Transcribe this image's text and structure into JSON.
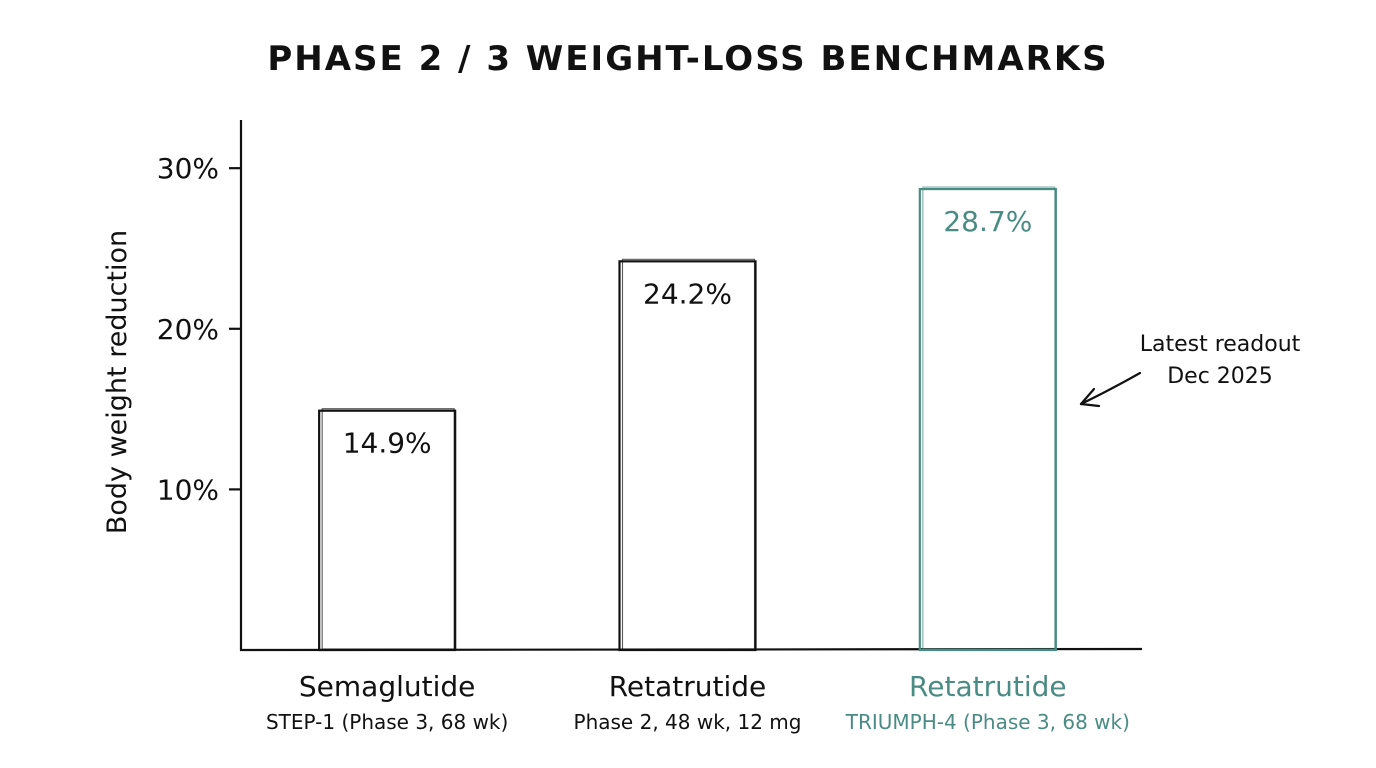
{
  "chart_data": {
    "type": "bar",
    "title": "PHASE 2 / 3 WEIGHT-LOSS BENCHMARKS",
    "ylabel": "Body weight reduction",
    "xlabel": "",
    "ylim": [
      0,
      33
    ],
    "yticks": [
      10,
      20,
      30
    ],
    "ytick_labels": [
      "10%",
      "20%",
      "30%"
    ],
    "grid": false,
    "categories": [
      "Semaglutide",
      "Retatrutide",
      "Retatrutide"
    ],
    "subtitles": [
      "STEP-1 (Phase 3, 68 wk)",
      "Phase 2, 48 wk, 12 mg",
      "TRIUMPH-4 (Phase 3, 68 wk)"
    ],
    "values": [
      14.9,
      24.2,
      28.7
    ],
    "value_labels": [
      "14.9%",
      "24.2%",
      "28.7%"
    ],
    "highlight_index": 2,
    "colors": {
      "default": "#111111",
      "highlight": "#4a8c84"
    },
    "annotation": {
      "lines": [
        "Latest readout",
        "Dec 2025"
      ],
      "target_index": 2
    }
  }
}
